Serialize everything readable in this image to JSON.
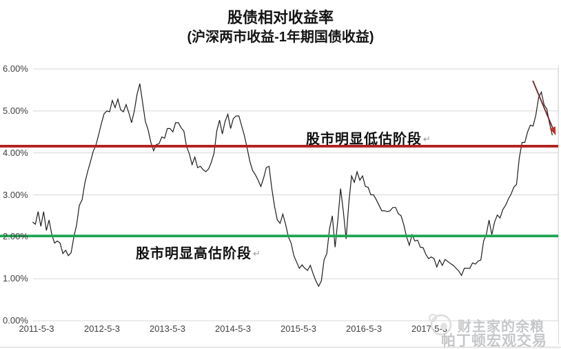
{
  "header": {
    "title": "股债相对收益率",
    "subtitle": "(沪深两市收益-1年期国债收益)"
  },
  "watermark": {
    "line1": "财主家的余粮",
    "line2": "帕丁顿宏观交易",
    "logo": "cat-circle-logo"
  },
  "chart_data": {
    "type": "line",
    "title": "股债相对收益率",
    "subtitle": "(沪深两市收益-1年期国债收益)",
    "grid": "horizontal",
    "legend": "none",
    "y_range": [
      0,
      6
    ],
    "y_ticks": [
      {
        "label": "6.00%",
        "v": 6
      },
      {
        "label": "5.00%",
        "v": 5
      },
      {
        "label": "4.00%",
        "v": 4
      },
      {
        "label": "3.00%",
        "v": 3
      },
      {
        "label": "2.00%",
        "v": 2
      },
      {
        "label": "1.00%",
        "v": 1
      },
      {
        "label": "0.00%",
        "v": 0
      }
    ],
    "x_ticks": [
      {
        "label": "2011-5-3",
        "t": 2011.34
      },
      {
        "label": "2012-5-3",
        "t": 2012.34
      },
      {
        "label": "2013-5-3",
        "t": 2013.34
      },
      {
        "label": "2014-5-3",
        "t": 2014.34
      },
      {
        "label": "2015-5-3",
        "t": 2015.34
      },
      {
        "label": "2016-5-3",
        "t": 2016.34
      },
      {
        "label": "2017-5-3",
        "t": 2017.34
      }
    ],
    "series": {
      "name": "股债相对收益率(沪深两市收益-1年期国债收益)",
      "unit": "%",
      "color": "#1c1c1c",
      "x_start_year": 2011.28,
      "x_step_years": 0.042,
      "values": [
        2.35,
        2.3,
        2.6,
        2.25,
        2.6,
        2.15,
        2.4,
        2.05,
        1.85,
        1.9,
        1.85,
        1.6,
        1.68,
        1.55,
        1.62,
        2.0,
        2.28,
        2.75,
        2.88,
        3.28,
        3.55,
        3.78,
        4.03,
        4.18,
        4.43,
        4.7,
        4.93,
        5.0,
        4.98,
        5.25,
        5.08,
        5.28,
        5.03,
        4.98,
        5.15,
        4.95,
        4.72,
        5.0,
        5.4,
        5.65,
        5.2,
        4.75,
        4.55,
        4.25,
        4.05,
        4.2,
        4.22,
        4.38,
        4.35,
        4.58,
        4.58,
        4.5,
        4.72,
        4.72,
        4.6,
        4.52,
        4.15,
        3.98,
        3.72,
        3.9,
        3.65,
        3.68,
        3.6,
        3.55,
        3.62,
        3.78,
        4.0,
        4.53,
        4.78,
        4.45,
        4.75,
        4.92,
        4.58,
        4.82,
        4.88,
        4.88,
        4.65,
        4.42,
        4.12,
        3.8,
        3.58,
        3.48,
        3.35,
        3.2,
        3.4,
        3.65,
        3.68,
        3.15,
        2.72,
        2.4,
        2.32,
        2.54,
        2.3,
        2.0,
        1.85,
        1.55,
        1.4,
        1.25,
        1.33,
        1.25,
        1.2,
        1.32,
        1.12,
        0.95,
        0.82,
        0.95,
        1.45,
        1.6,
        2.2,
        2.5,
        1.75,
        2.4,
        3.15,
        2.6,
        1.95,
        2.8,
        3.45,
        3.3,
        3.55,
        3.35,
        3.45,
        3.2,
        3.18,
        3.0,
        3.0,
        2.88,
        2.75,
        2.62,
        2.62,
        2.6,
        2.62,
        2.7,
        2.7,
        2.55,
        2.5,
        2.28,
        2.0,
        1.8,
        2.05,
        1.9,
        1.92,
        1.75,
        1.74,
        1.58,
        1.48,
        1.52,
        1.48,
        1.28,
        1.45,
        1.32,
        1.46,
        1.41,
        1.36,
        1.32,
        1.25,
        1.18,
        1.08,
        1.25,
        1.25,
        1.25,
        1.38,
        1.35,
        1.42,
        1.45,
        1.9,
        2.06,
        2.4,
        2.05,
        2.35,
        2.52,
        2.45,
        2.65,
        2.75,
        2.9,
        3.02,
        3.18,
        3.25,
        3.88,
        4.25,
        4.25,
        4.5,
        4.66,
        4.64,
        4.9,
        5.32,
        5.45,
        5.15,
        5.05,
        4.7,
        4.42
      ]
    },
    "reference_lines": [
      {
        "value": 4.16,
        "color": "#b2211f",
        "label": "股市明显低估阶段",
        "label_suffix": "↵"
      },
      {
        "value": 2.02,
        "color": "#1ea653",
        "label": "股市明显高估阶段",
        "label_suffix": "↵"
      }
    ],
    "arrow_annotation": {
      "from": [
        2018.92,
        5.72
      ],
      "to": [
        2019.27,
        4.42
      ],
      "color": "#c0312b"
    }
  }
}
